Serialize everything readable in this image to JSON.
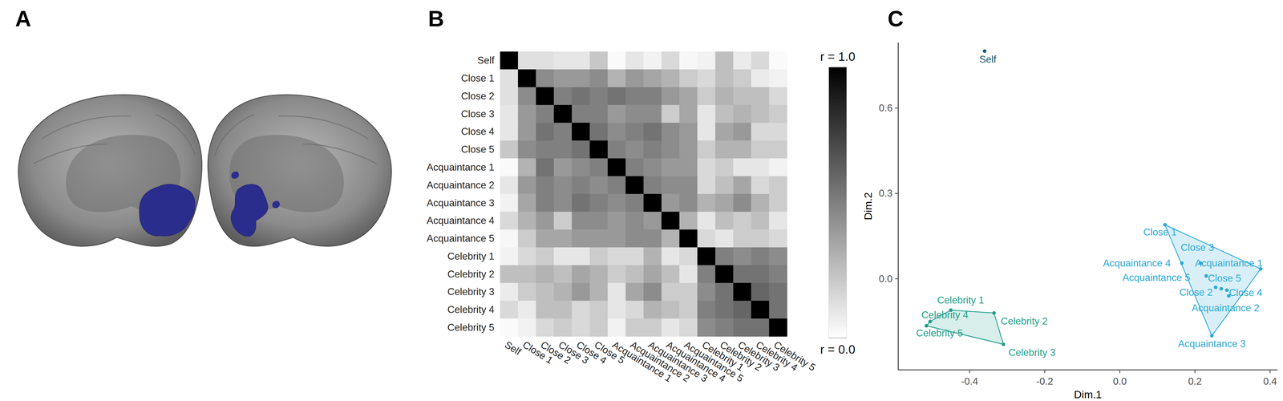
{
  "panel_labels": [
    "A",
    "B",
    "C"
  ],
  "chart_data": [
    {
      "type": "heatmap",
      "categories": [
        "Self",
        "Close 1",
        "Close 2",
        "Close 3",
        "Close 4",
        "Close 5",
        "Acquaintance 1",
        "Acquaintance 2",
        "Acquaintance 3",
        "Acquaintance 4",
        "Acquaintance 5",
        "Celebrity 1",
        "Celebrity 2",
        "Celebrity 3",
        "Celebrity 4",
        "Celebrity 5"
      ],
      "cells": [
        [
          1,
          0.12,
          0.12,
          0.1,
          0.1,
          0.22,
          0.02,
          0.1,
          0.05,
          0.15,
          0.03,
          0.05,
          0.25,
          0.08,
          0.15,
          0.02
        ],
        [
          0.12,
          1,
          0.45,
          0.4,
          0.4,
          0.45,
          0.3,
          0.4,
          0.35,
          0.3,
          0.2,
          0.15,
          0.25,
          0.2,
          0.08,
          0.05
        ],
        [
          0.12,
          0.45,
          1,
          0.5,
          0.55,
          0.5,
          0.55,
          0.5,
          0.5,
          0.4,
          0.35,
          0.2,
          0.3,
          0.25,
          0.25,
          0.15
        ],
        [
          0.1,
          0.4,
          0.5,
          1,
          0.5,
          0.5,
          0.4,
          0.45,
          0.45,
          0.2,
          0.35,
          0.1,
          0.25,
          0.3,
          0.25,
          0.2
        ],
        [
          0.1,
          0.4,
          0.55,
          0.5,
          1,
          0.55,
          0.45,
          0.5,
          0.55,
          0.45,
          0.4,
          0.1,
          0.35,
          0.4,
          0.15,
          0.15
        ],
        [
          0.22,
          0.45,
          0.5,
          0.5,
          0.55,
          1,
          0.5,
          0.45,
          0.5,
          0.45,
          0.4,
          0.2,
          0.3,
          0.3,
          0.2,
          0.2
        ],
        [
          0.02,
          0.3,
          0.55,
          0.4,
          0.45,
          0.5,
          1,
          0.5,
          0.45,
          0.4,
          0.4,
          0.15,
          0.2,
          0.1,
          0.1,
          0.05
        ],
        [
          0.1,
          0.4,
          0.5,
          0.45,
          0.5,
          0.45,
          0.5,
          1,
          0.5,
          0.45,
          0.45,
          0.15,
          0.25,
          0.35,
          0.15,
          0.2
        ],
        [
          0.05,
          0.35,
          0.5,
          0.45,
          0.55,
          0.5,
          0.45,
          0.5,
          1,
          0.4,
          0.45,
          0.3,
          0.35,
          0.45,
          0.3,
          0.2
        ],
        [
          0.15,
          0.3,
          0.4,
          0.2,
          0.45,
          0.45,
          0.4,
          0.45,
          0.4,
          1,
          0.3,
          0.1,
          0.25,
          0.2,
          0.25,
          0.1
        ],
        [
          0.03,
          0.2,
          0.35,
          0.35,
          0.4,
          0.4,
          0.4,
          0.45,
          0.45,
          0.3,
          1,
          0.15,
          0.1,
          0.2,
          0.2,
          0.15
        ],
        [
          0.05,
          0.15,
          0.2,
          0.1,
          0.1,
          0.2,
          0.15,
          0.15,
          0.3,
          0.1,
          0.15,
          1,
          0.5,
          0.45,
          0.5,
          0.45
        ],
        [
          0.25,
          0.25,
          0.3,
          0.25,
          0.35,
          0.3,
          0.2,
          0.25,
          0.35,
          0.25,
          0.1,
          0.5,
          1,
          0.55,
          0.55,
          0.5
        ],
        [
          0.08,
          0.2,
          0.25,
          0.3,
          0.4,
          0.3,
          0.1,
          0.35,
          0.45,
          0.2,
          0.2,
          0.45,
          0.55,
          1,
          0.6,
          0.55
        ],
        [
          0.15,
          0.08,
          0.25,
          0.25,
          0.15,
          0.2,
          0.1,
          0.15,
          0.3,
          0.25,
          0.2,
          0.5,
          0.55,
          0.6,
          1,
          0.55
        ],
        [
          0.02,
          0.05,
          0.15,
          0.2,
          0.15,
          0.2,
          0.05,
          0.2,
          0.2,
          0.1,
          0.15,
          0.45,
          0.5,
          0.55,
          0.55,
          1
        ]
      ],
      "colorbar_range": [
        0,
        1
      ],
      "colorbar_ticks": [
        {
          "value": 0,
          "label": "r = 0.0"
        },
        {
          "value": 1,
          "label": "r = 1.0"
        }
      ]
    },
    {
      "type": "scatter",
      "x_label": "Dim.1",
      "y_label": "Dim.2",
      "xlim": [
        -0.59,
        0.42
      ],
      "ylim": [
        -0.32,
        0.83
      ],
      "xticks": [
        -0.4,
        -0.2,
        {
          "value": 0,
          "label": "0.0"
        },
        0.2,
        0.4
      ],
      "yticks": [
        {
          "value": 0,
          "label": "0.0"
        },
        0.3,
        0.6
      ],
      "series": [
        {
          "color": "#1b5a7a",
          "labels": [
            "Self"
          ],
          "x": [
            -0.36
          ],
          "values": [
            0.8
          ]
        },
        {
          "color": "#2aa9d6",
          "labels": [
            "Close 1",
            "Close 2",
            "Close 3",
            "Close 4",
            "Close 5",
            "Acquaintance 1",
            "Acquaintance 2",
            "Acquaintance 3",
            "Acquaintance 4",
            "Acquaintance 5"
          ],
          "x": [
            0.12,
            0.255,
            0.215,
            0.285,
            0.27,
            0.375,
            0.29,
            0.245,
            0.165,
            0.23
          ],
          "values": [
            0.19,
            -0.03,
            0.055,
            -0.04,
            -0.035,
            0.035,
            -0.06,
            -0.2,
            0.055,
            0.01
          ]
        },
        {
          "color": "#1f9e89",
          "labels": [
            "Celebrity 1",
            "Celebrity 2",
            "Celebrity 3",
            "Celebrity 4",
            "Celebrity 5"
          ],
          "x": [
            -0.45,
            -0.335,
            -0.31,
            -0.505,
            -0.515
          ],
          "values": [
            -0.11,
            -0.12,
            -0.23,
            -0.15,
            -0.165
          ]
        }
      ]
    }
  ]
}
